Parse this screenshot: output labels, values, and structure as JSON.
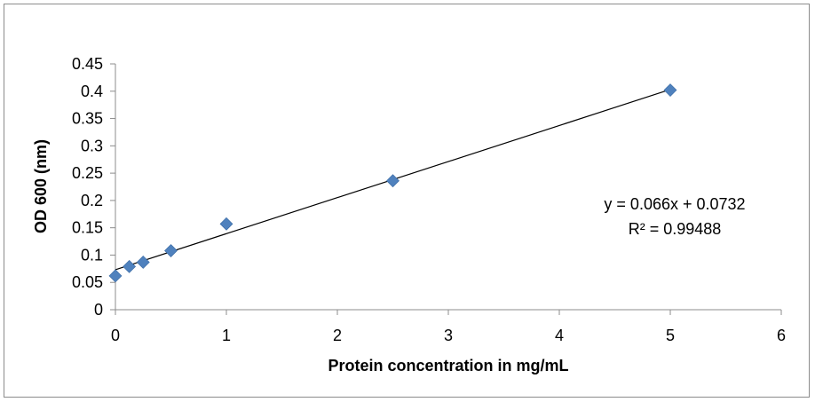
{
  "chart_data": {
    "type": "scatter",
    "xlabel": "Protein concentration in mg/mL",
    "ylabel": "OD 600 (nm)",
    "xlim": [
      0,
      6
    ],
    "ylim": [
      0,
      0.45
    ],
    "x_ticks": [
      "0",
      "1",
      "2",
      "3",
      "4",
      "5",
      "6"
    ],
    "y_ticks": [
      "0",
      "0.05",
      "0.1",
      "0.15",
      "0.2",
      "0.25",
      "0.3",
      "0.35",
      "0.4",
      "0.45"
    ],
    "grid": false,
    "marker_color": "#4f81bd",
    "trendline_color": "#000000",
    "series": [
      {
        "x": [
          0,
          0.125,
          0.25,
          0.5,
          1,
          2.5,
          5
        ],
        "y": [
          0.062,
          0.079,
          0.087,
          0.108,
          0.157,
          0.236,
          0.402
        ]
      }
    ],
    "trendline": {
      "slope": 0.066,
      "intercept": 0.0732,
      "x_range": [
        0,
        5
      ],
      "equation": "y = 0.066x + 0.0732",
      "r_squared": "R² = 0.99488"
    }
  }
}
